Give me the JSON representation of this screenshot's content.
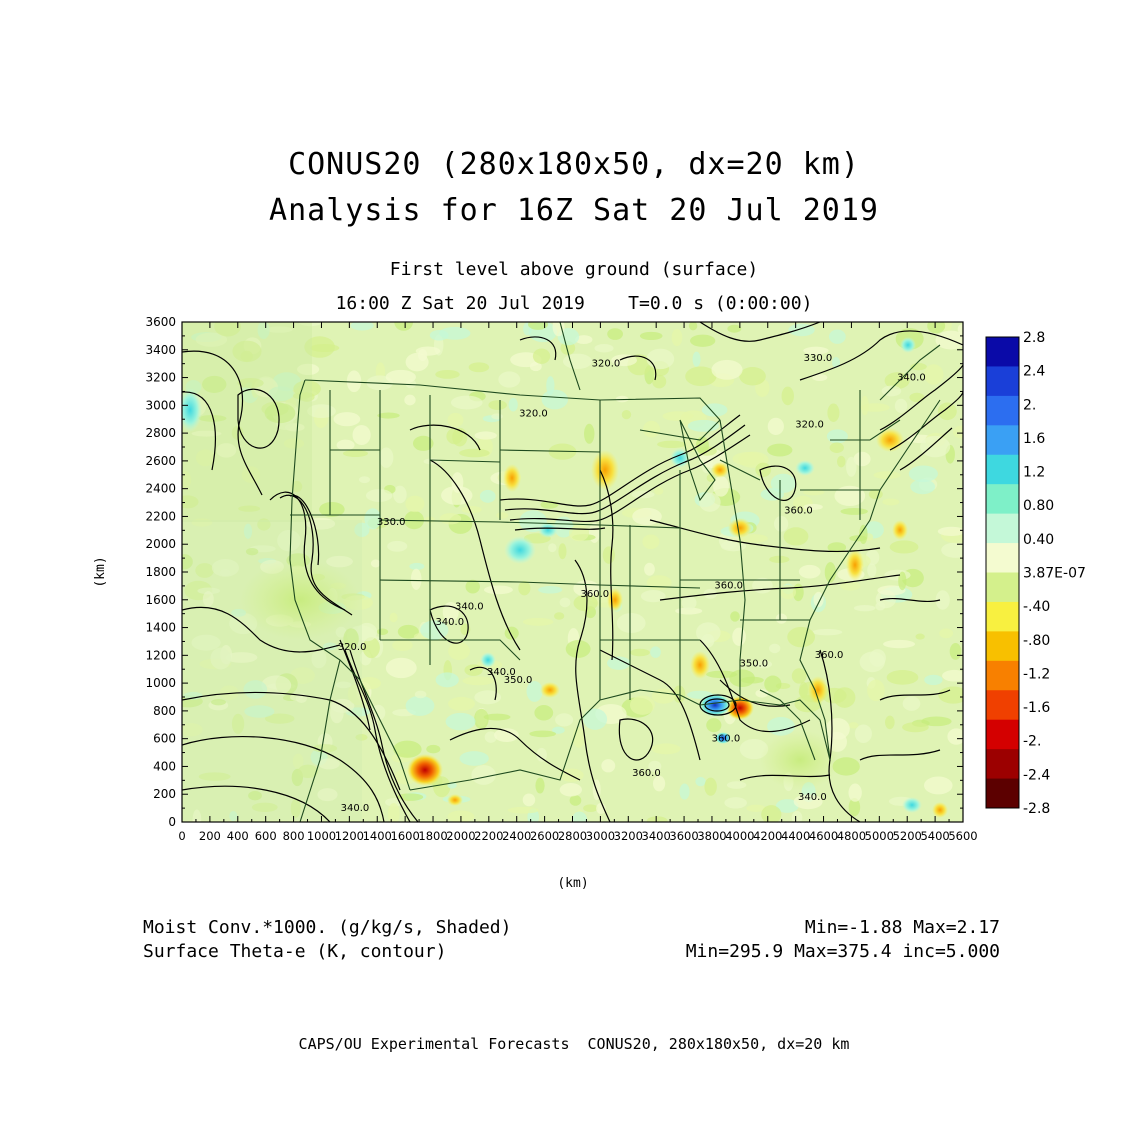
{
  "header": {
    "title_line1": "CONUS20 (280x180x50, dx=20 km)",
    "title_line2": "Analysis for 16Z Sat 20 Jul 2019",
    "subtitle_level": "First level above ground (surface)",
    "subtitle_time": "16:00 Z Sat 20 Jul 2019    T=0.0 s (0:00:00)"
  },
  "axes": {
    "x_label": "(km)",
    "y_label": "(km)",
    "x_ticks": [
      0,
      200,
      400,
      600,
      800,
      1000,
      1200,
      1400,
      1600,
      1800,
      2000,
      2200,
      2400,
      2600,
      2800,
      3000,
      3200,
      3400,
      3600,
      3800,
      4000,
      4200,
      4400,
      4600,
      4800,
      5000,
      5200,
      5400,
      5600
    ],
    "y_ticks": [
      0,
      200,
      400,
      600,
      800,
      1000,
      1200,
      1400,
      1600,
      1800,
      2000,
      2200,
      2400,
      2600,
      2800,
      3000,
      3200,
      3400,
      3600
    ],
    "x_range": [
      0,
      5600
    ],
    "y_range": [
      0,
      3600
    ]
  },
  "colorbar": {
    "labels": [
      "2.8",
      "2.4",
      "2.",
      "1.6",
      "1.2",
      "0.80",
      "0.40",
      "3.87E-07",
      "-.40",
      "-.80",
      "-1.2",
      "-1.6",
      "-2.",
      "-2.4",
      "-2.8"
    ],
    "colors": [
      "#0a0aa8",
      "#1a3fd8",
      "#2c6ef0",
      "#3aa0f4",
      "#3ed8e0",
      "#7ef0c8",
      "#c4f8d8",
      "#f4fbd0",
      "#d4f08c",
      "#f8f040",
      "#f8c000",
      "#f88000",
      "#f04000",
      "#d40000",
      "#9c0000",
      "#5c0000"
    ]
  },
  "contour_labels": [
    {
      "text": "320.0",
      "x": 1220,
      "y": 1240
    },
    {
      "text": "320.0",
      "x": 3040,
      "y": 3280
    },
    {
      "text": "320.0",
      "x": 2520,
      "y": 2920
    },
    {
      "text": "330.0",
      "x": 4560,
      "y": 3320
    },
    {
      "text": "340.0",
      "x": 5230,
      "y": 3180
    },
    {
      "text": "320.0",
      "x": 4500,
      "y": 2840
    },
    {
      "text": "330.0",
      "x": 1500,
      "y": 2140
    },
    {
      "text": "340.0",
      "x": 1920,
      "y": 1420
    },
    {
      "text": "340.0",
      "x": 2060,
      "y": 1530
    },
    {
      "text": "340.0",
      "x": 2290,
      "y": 1060
    },
    {
      "text": "350.0",
      "x": 2410,
      "y": 1000
    },
    {
      "text": "360.0",
      "x": 2960,
      "y": 1620
    },
    {
      "text": "360.0",
      "x": 3920,
      "y": 1680
    },
    {
      "text": "360.0",
      "x": 4420,
      "y": 2220
    },
    {
      "text": "360.0",
      "x": 4640,
      "y": 1180
    },
    {
      "text": "350.0",
      "x": 4100,
      "y": 1120
    },
    {
      "text": "360.0",
      "x": 3900,
      "y": 580
    },
    {
      "text": "360.0",
      "x": 3330,
      "y": 330
    },
    {
      "text": "340.0",
      "x": 1240,
      "y": 80
    },
    {
      "text": "340.0",
      "x": 4520,
      "y": 160
    }
  ],
  "legend": {
    "shaded_field": "Moist Conv.*1000. (g/kg/s, Shaded)",
    "contour_field": "Surface Theta-e (K, contour)",
    "shaded_range": "Min=-1.88 Max=2.17",
    "contour_range": "Min=295.9 Max=375.4 inc=5.000"
  },
  "footer": "CAPS/OU Experimental Forecasts  CONUS20, 280x180x50, dx=20 km"
}
